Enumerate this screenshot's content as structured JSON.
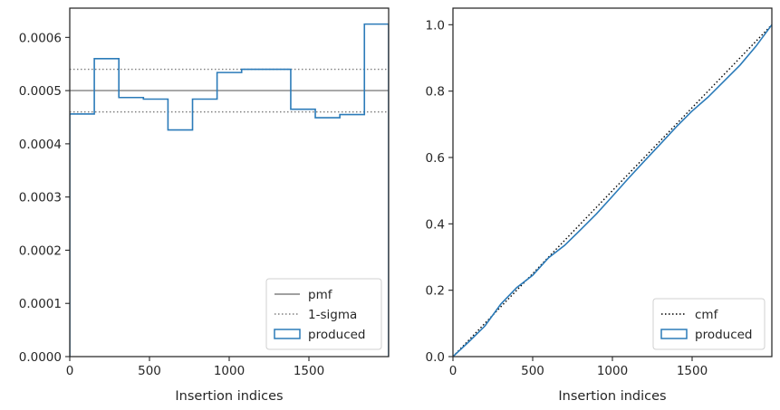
{
  "chart_data": [
    {
      "type": "step",
      "xlabel": "Insertion indices",
      "ylabel": "",
      "xlim": [
        0,
        2000
      ],
      "ylim": [
        0,
        0.000655
      ],
      "xticks": [
        0,
        500,
        1000,
        1500
      ],
      "xtick_labels": [
        "0",
        "500",
        "1000",
        "1500"
      ],
      "yticks": [
        0,
        0.0001,
        0.0002,
        0.0003,
        0.0004,
        0.0005,
        0.0006
      ],
      "ytick_labels": [
        "0.0000",
        "0.0001",
        "0.0002",
        "0.0003",
        "0.0004",
        "0.0005",
        "0.0006"
      ],
      "hlines": [
        {
          "name": "pmf",
          "y": 0.0005,
          "color": "#808080",
          "style": "solid"
        },
        {
          "name": "1-sigma",
          "y": 0.00054,
          "color": "#808080",
          "style": "dotted"
        },
        {
          "name": "1-sigma",
          "y": 0.00046,
          "color": "#808080",
          "style": "dotted"
        }
      ],
      "series": [
        {
          "name": "produced",
          "color": "#2b7bb9",
          "bin_edges": [
            0,
            154,
            308,
            462,
            616,
            770,
            924,
            1078,
            1232,
            1386,
            1540,
            1694,
            1848,
            2000
          ],
          "values": [
            0.000456,
            0.00056,
            0.000487,
            0.000484,
            0.000426,
            0.000484,
            0.000534,
            0.00054,
            0.00054,
            0.000465,
            0.000449,
            0.000455,
            0.000625
          ]
        }
      ],
      "legend": {
        "position": "lower-right",
        "entries": [
          {
            "label": "pmf",
            "kind": "line",
            "color": "#808080",
            "style": "solid"
          },
          {
            "label": "1-sigma",
            "kind": "line",
            "color": "#808080",
            "style": "dotted"
          },
          {
            "label": "produced",
            "kind": "patch",
            "color": "#2b7bb9"
          }
        ]
      }
    },
    {
      "type": "line",
      "xlabel": "Insertion indices",
      "ylabel": "",
      "xlim": [
        0,
        2000
      ],
      "ylim": [
        0,
        1.05
      ],
      "xticks": [
        0,
        500,
        1000,
        1500
      ],
      "xtick_labels": [
        "0",
        "500",
        "1000",
        "1500"
      ],
      "yticks": [
        0,
        0.2,
        0.4,
        0.6,
        0.8,
        1.0
      ],
      "ytick_labels": [
        "0.0",
        "0.2",
        "0.4",
        "0.6",
        "0.8",
        "1.0"
      ],
      "series": [
        {
          "name": "cmf",
          "color": "#000000",
          "style": "dotted",
          "x": [
            0,
            2000
          ],
          "y": [
            0,
            1.0
          ]
        },
        {
          "name": "produced",
          "color": "#2b7bb9",
          "style": "solid",
          "x": [
            0,
            100,
            200,
            300,
            400,
            500,
            600,
            700,
            800,
            900,
            1000,
            1100,
            1200,
            1300,
            1400,
            1500,
            1600,
            1700,
            1800,
            1900,
            2000
          ],
          "y": [
            0,
            0.045,
            0.092,
            0.158,
            0.208,
            0.245,
            0.298,
            0.335,
            0.382,
            0.43,
            0.483,
            0.537,
            0.589,
            0.64,
            0.692,
            0.74,
            0.782,
            0.83,
            0.878,
            0.935,
            1.0
          ]
        }
      ],
      "legend": {
        "position": "lower-right",
        "entries": [
          {
            "label": "cmf",
            "kind": "line",
            "color": "#000000",
            "style": "dotted"
          },
          {
            "label": "produced",
            "kind": "patch",
            "color": "#2b7bb9"
          }
        ]
      }
    }
  ]
}
